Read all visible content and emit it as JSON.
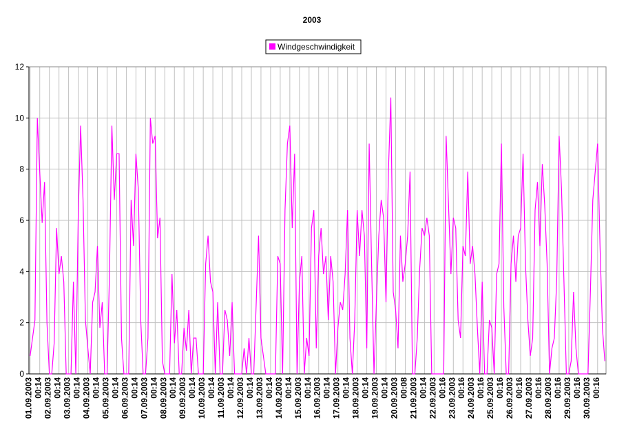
{
  "chart_data": {
    "type": "line",
    "title": "2003",
    "categories": [
      "01.09.2003",
      null,
      null,
      null,
      "00:14",
      null,
      null,
      null,
      "02.09.2003",
      null,
      null,
      null,
      "00:14",
      null,
      null,
      null,
      "03.09.2003",
      null,
      null,
      null,
      "00:14",
      null,
      null,
      null,
      "04.09.2003",
      null,
      null,
      null,
      "00:14",
      null,
      null,
      null,
      "05.09.2003",
      null,
      null,
      null,
      "00:14",
      null,
      null,
      null,
      "06.09.2003",
      null,
      null,
      null,
      "00:14",
      null,
      null,
      null,
      "07.09.2003",
      null,
      null,
      null,
      "00:14",
      null,
      null,
      null,
      "08.09.2003",
      null,
      null,
      null,
      "00:14",
      null,
      null,
      null,
      "09.09.2003",
      null,
      null,
      null,
      "00:14",
      null,
      null,
      null,
      "10.09.2003",
      null,
      null,
      null,
      "00:14",
      null,
      null,
      null,
      "11.09.2003",
      null,
      null,
      null,
      "00:14",
      null,
      null,
      null,
      "12.09.2003",
      null,
      null,
      null,
      "00:14",
      null,
      null,
      null,
      "13.09.2003",
      null,
      null,
      null,
      "00:14",
      null,
      null,
      null,
      "14.09.2003",
      null,
      null,
      null,
      "00:14",
      null,
      null,
      null,
      "15.09.2003",
      null,
      null,
      null,
      "00:14",
      null,
      null,
      null,
      "16.09.2003",
      null,
      null,
      null,
      "00:14",
      null,
      null,
      null,
      "17.09.2003",
      null,
      null,
      null,
      "00:14",
      null,
      null,
      null,
      "18.09.2003",
      null,
      null,
      null,
      "00:14",
      null,
      null,
      null,
      "19.09.2003",
      null,
      null,
      null,
      "00:14",
      null,
      null,
      null,
      "20.09.2003",
      null,
      null,
      null,
      "00:08",
      null,
      null,
      null,
      "21.09.2003",
      null,
      null,
      null,
      "00:14",
      null,
      null,
      null,
      "22.09.2003",
      null,
      null,
      null,
      "00:16",
      null,
      null,
      null,
      "23.09.2003",
      null,
      null,
      null,
      "00:16",
      null,
      null,
      null,
      "24.09.2003",
      null,
      null,
      null,
      "00:16",
      null,
      null,
      null,
      "25.09.2003",
      null,
      null,
      null,
      "00:16",
      null,
      null,
      null,
      "26.09.2003",
      null,
      null,
      null,
      "00:16",
      null,
      null,
      null,
      "27.09.2003",
      null,
      null,
      null,
      "00:16",
      null,
      null,
      null,
      "28.09.2003",
      null,
      null,
      null,
      "00:16",
      null,
      null,
      null,
      "29.09.2003",
      null,
      null,
      null,
      "00:16",
      null,
      null,
      null,
      "30.09.2003",
      null,
      null,
      null,
      "00:16",
      null,
      null,
      null
    ],
    "series": [
      {
        "name": "Windgeschwindigkeit",
        "color": "#ff00ff",
        "values": [
          0.7,
          1.4,
          2.1,
          10,
          7.9,
          5.9,
          7.5,
          2,
          0,
          0,
          1.2,
          5.7,
          3.9,
          4.6,
          3.6,
          0,
          0,
          0,
          3.6,
          0,
          6.1,
          9.7,
          6.8,
          2.1,
          1,
          0,
          2.8,
          3.2,
          5,
          1.8,
          2.8,
          0,
          0,
          3.9,
          9.7,
          6.8,
          8.6,
          8.6,
          1.4,
          0,
          0,
          0,
          6.8,
          5,
          8.6,
          7.2,
          2.1,
          0,
          0,
          1.4,
          10,
          9,
          9.3,
          5.3,
          6.1,
          0.5,
          0,
          0,
          0,
          3.9,
          1.2,
          2.5,
          0,
          0,
          1.8,
          0.9,
          2.5,
          0,
          1.4,
          1.4,
          0,
          0,
          0,
          4.3,
          5.4,
          3.6,
          3.2,
          0,
          2.8,
          0,
          0,
          2.5,
          2.1,
          0.7,
          2.8,
          0,
          0,
          0,
          0,
          1,
          0,
          1.4,
          0,
          0,
          2.7,
          5.4,
          1.4,
          0.7,
          0,
          0,
          0,
          0,
          0,
          4.6,
          4.3,
          0,
          6.4,
          9,
          9.7,
          5.7,
          8.6,
          0,
          3.6,
          4.6,
          0,
          1.4,
          0.7,
          5.7,
          6.4,
          1,
          4.6,
          5.7,
          3.9,
          4.6,
          2.1,
          4.6,
          3.6,
          0,
          1.8,
          2.8,
          2.5,
          3.9,
          6.4,
          1.4,
          0,
          2.1,
          6.4,
          4.6,
          6.4,
          5.4,
          1,
          9,
          4.3,
          0,
          2.8,
          5.4,
          6.8,
          6.1,
          2.8,
          7.9,
          10.8,
          3.2,
          2.5,
          1,
          5.4,
          3.6,
          4.3,
          5.4,
          7.9,
          0,
          0,
          1.4,
          4.1,
          5.7,
          5.4,
          6.1,
          5.4,
          0,
          0,
          0,
          0,
          0,
          0,
          9.3,
          6.6,
          3.9,
          6.1,
          5.7,
          2.1,
          1.4,
          5,
          4.6,
          7.9,
          4.3,
          5,
          3.9,
          1.8,
          0,
          3.6,
          0,
          0,
          2.1,
          1.8,
          0,
          3.9,
          4.3,
          9,
          2.6,
          0,
          0,
          4.3,
          5.4,
          3.6,
          5.4,
          5.7,
          8.6,
          4.3,
          2.1,
          0.7,
          1.4,
          6.4,
          7.5,
          5,
          8.2,
          6.6,
          4.3,
          0,
          1,
          1.4,
          3.7,
          9.3,
          7.2,
          3.6,
          0,
          0,
          0.5,
          3.2,
          1,
          0,
          0,
          0,
          0,
          0,
          3.2,
          6.8,
          7.9,
          9,
          5,
          1.8,
          0.5
        ]
      }
    ],
    "ylim": [
      0,
      12
    ],
    "yticks": [
      0,
      2,
      4,
      6,
      8,
      10,
      12
    ],
    "grid": true
  }
}
